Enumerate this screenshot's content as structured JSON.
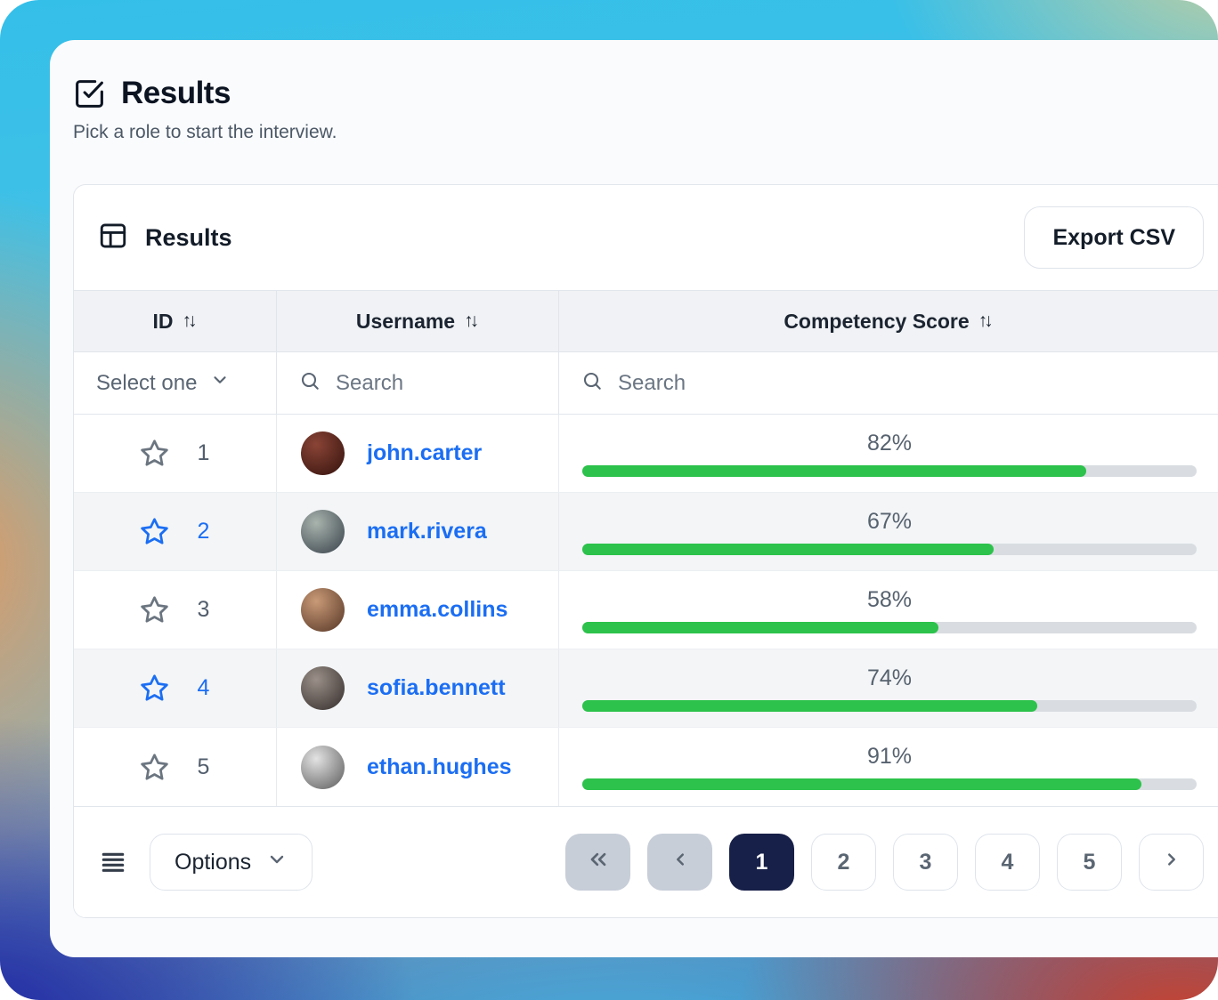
{
  "page": {
    "title": "Results",
    "subtitle": "Pick a role to start the interview."
  },
  "panel": {
    "title": "Results",
    "export_label": "Export CSV"
  },
  "table": {
    "columns": [
      {
        "label": "ID",
        "sort_glyph": "↑↓"
      },
      {
        "label": "Username",
        "sort_glyph": "↑↓"
      },
      {
        "label": "Competency Score",
        "sort_glyph": "↑↓"
      }
    ],
    "filters": {
      "id_select_label": "Select one",
      "username_search_placeholder": "Search",
      "score_search_placeholder": "Search"
    },
    "rows": [
      {
        "id": "1",
        "username": "john.carter",
        "score": 82,
        "score_label": "82%",
        "starred": false,
        "avatar": {
          "light": "#8a4436",
          "dark": "#33120d"
        }
      },
      {
        "id": "2",
        "username": "mark.rivera",
        "score": 67,
        "score_label": "67%",
        "starred": true,
        "avatar": {
          "light": "#a9b4ae",
          "dark": "#37414a"
        }
      },
      {
        "id": "3",
        "username": "emma.collins",
        "score": 58,
        "score_label": "58%",
        "starred": false,
        "avatar": {
          "light": "#c99a77",
          "dark": "#553525"
        }
      },
      {
        "id": "4",
        "username": "sofia.bennett",
        "score": 74,
        "score_label": "74%",
        "starred": true,
        "avatar": {
          "light": "#9b9089",
          "dark": "#332c2a"
        }
      },
      {
        "id": "5",
        "username": "ethan.hughes",
        "score": 91,
        "score_label": "91%",
        "starred": false,
        "avatar": {
          "light": "#e3e3e3",
          "dark": "#5a5a5a"
        }
      }
    ]
  },
  "footer": {
    "options_label": "Options",
    "pagination": {
      "pages": [
        "1",
        "2",
        "3",
        "4",
        "5"
      ],
      "active_page": "1"
    }
  },
  "colors": {
    "accent_blue": "#1b6ef3",
    "bar_green": "#2cc24b",
    "bar_track": "#d9dde1",
    "active_page_navy": "#172048",
    "disabled_button_gray": "#c7ced8",
    "header_bg": "#f0f2f5",
    "zebra_bg": "#f3f5f7"
  }
}
